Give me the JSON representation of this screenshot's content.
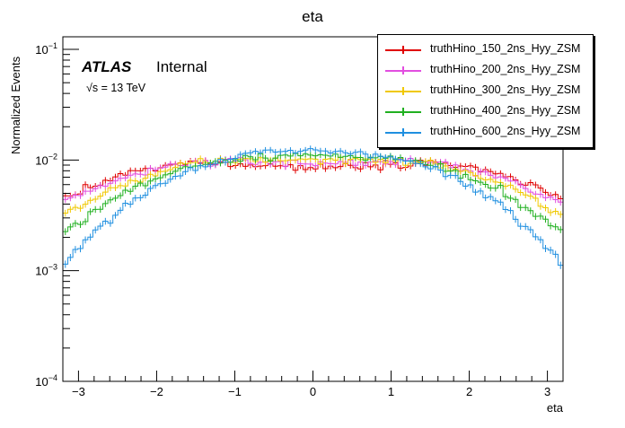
{
  "chart_data": {
    "type": "line",
    "style": "histogram-with-error-bars",
    "title": "eta",
    "xlabel": "eta",
    "ylabel": "Normalized Events",
    "xlim": [
      -3.2,
      3.2
    ],
    "ylim": [
      0.0001,
      0.13
    ],
    "yscale": "log",
    "x_ticks": [
      -3,
      -2,
      -1,
      0,
      1,
      2,
      3
    ],
    "x_tick_labels": [
      "−3",
      "−2",
      "−1",
      "0",
      "1",
      "2",
      "3"
    ],
    "y_ticks": [
      0.0001,
      0.001,
      0.01,
      0.1
    ],
    "y_tick_labels": [
      {
        "base": "10",
        "exp": "−4"
      },
      {
        "base": "10",
        "exp": "−3"
      },
      {
        "base": "10",
        "exp": "−2"
      },
      {
        "base": "10",
        "exp": "−1"
      }
    ],
    "atlas_label": "ATLAS",
    "internal_label": "Internal",
    "energy_label": "√s = 13 TeV",
    "legend_position": "top-right",
    "bins": 100,
    "x": [
      -3.2,
      -2.4,
      -1.6,
      -0.8,
      0.0,
      0.8,
      1.6,
      2.4,
      3.2
    ],
    "series": [
      {
        "name": "truthHino_150_2ns_Hyy_ZSM",
        "color": "#e00000",
        "values": [
          0.0045,
          0.0075,
          0.0095,
          0.0092,
          0.0085,
          0.0092,
          0.0095,
          0.0075,
          0.0045
        ]
      },
      {
        "name": "truthHino_200_2ns_Hyy_ZSM",
        "color": "#e24ee0",
        "values": [
          0.004,
          0.007,
          0.0095,
          0.0097,
          0.0093,
          0.0097,
          0.0095,
          0.007,
          0.004
        ]
      },
      {
        "name": "truthHino_300_2ns_Hyy_ZSM",
        "color": "#f0c800",
        "values": [
          0.0032,
          0.0062,
          0.0092,
          0.0102,
          0.01,
          0.0102,
          0.0092,
          0.0062,
          0.0032
        ]
      },
      {
        "name": "truthHino_400_2ns_Hyy_ZSM",
        "color": "#20b020",
        "values": [
          0.0022,
          0.0052,
          0.0088,
          0.0108,
          0.011,
          0.0108,
          0.0088,
          0.0052,
          0.0022
        ]
      },
      {
        "name": "truthHino_600_2ns_Hyy_ZSM",
        "color": "#1f8fe0",
        "values": [
          0.0012,
          0.004,
          0.0082,
          0.0115,
          0.0122,
          0.0115,
          0.0082,
          0.004,
          0.0012
        ]
      }
    ]
  }
}
